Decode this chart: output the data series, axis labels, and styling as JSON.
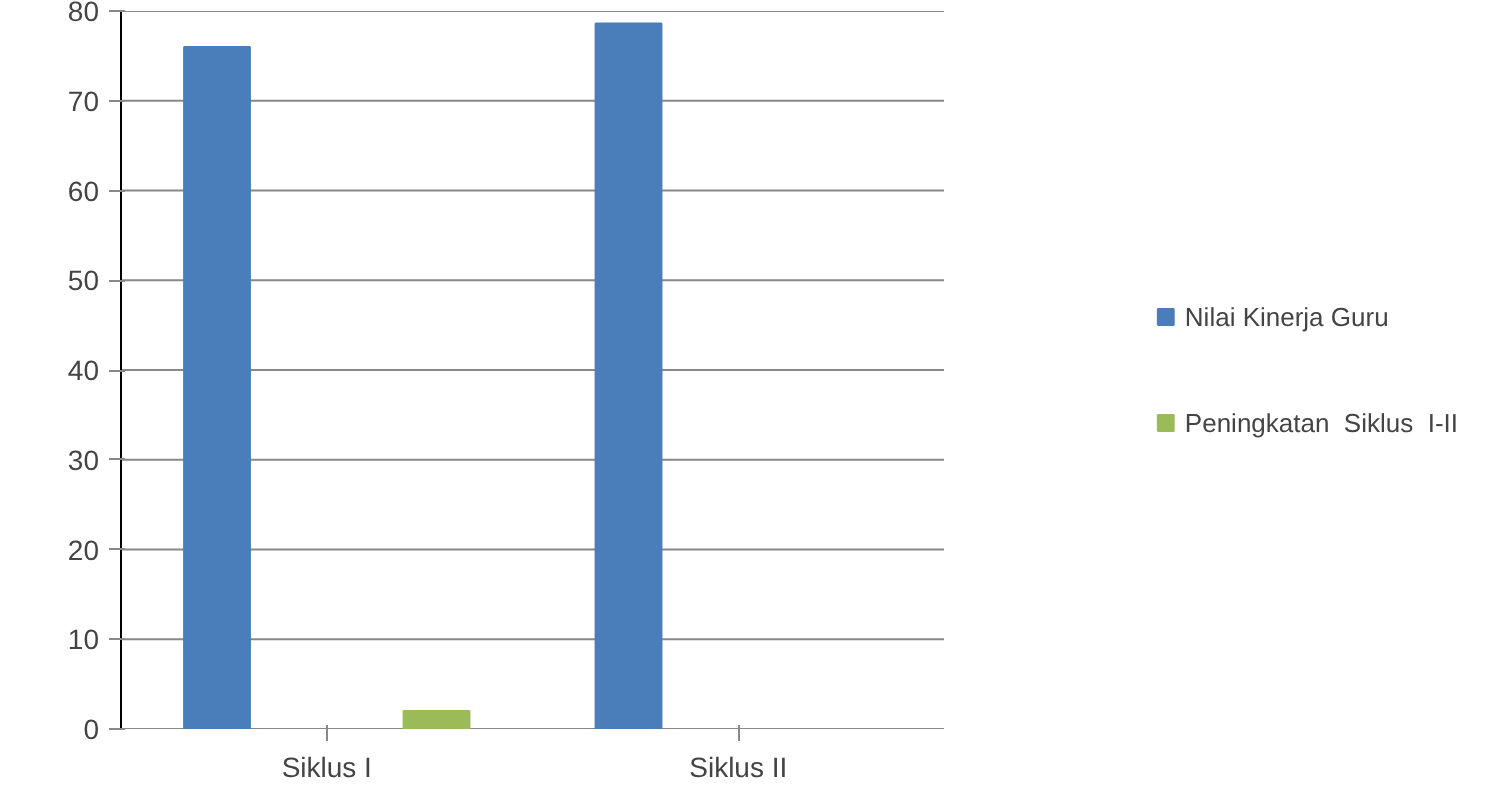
{
  "chart_data": {
    "type": "bar",
    "categories": [
      "Siklus I",
      "Siklus II"
    ],
    "series": [
      {
        "name": "Nilai Kinerja Guru",
        "color": "#4a7ebb",
        "values": [
          76,
          78.6
        ]
      },
      {
        "color": "#c0504d",
        "values": [
          null,
          null
        ]
      },
      {
        "name": "Peningkatan  Siklus  I-II",
        "color": "#9bbb59",
        "values": [
          2,
          null
        ]
      }
    ],
    "ylim": [
      0,
      80
    ],
    "yticks": [
      0,
      10,
      20,
      30,
      40,
      50,
      60,
      70,
      80
    ],
    "grid": "y",
    "legend": "right"
  }
}
